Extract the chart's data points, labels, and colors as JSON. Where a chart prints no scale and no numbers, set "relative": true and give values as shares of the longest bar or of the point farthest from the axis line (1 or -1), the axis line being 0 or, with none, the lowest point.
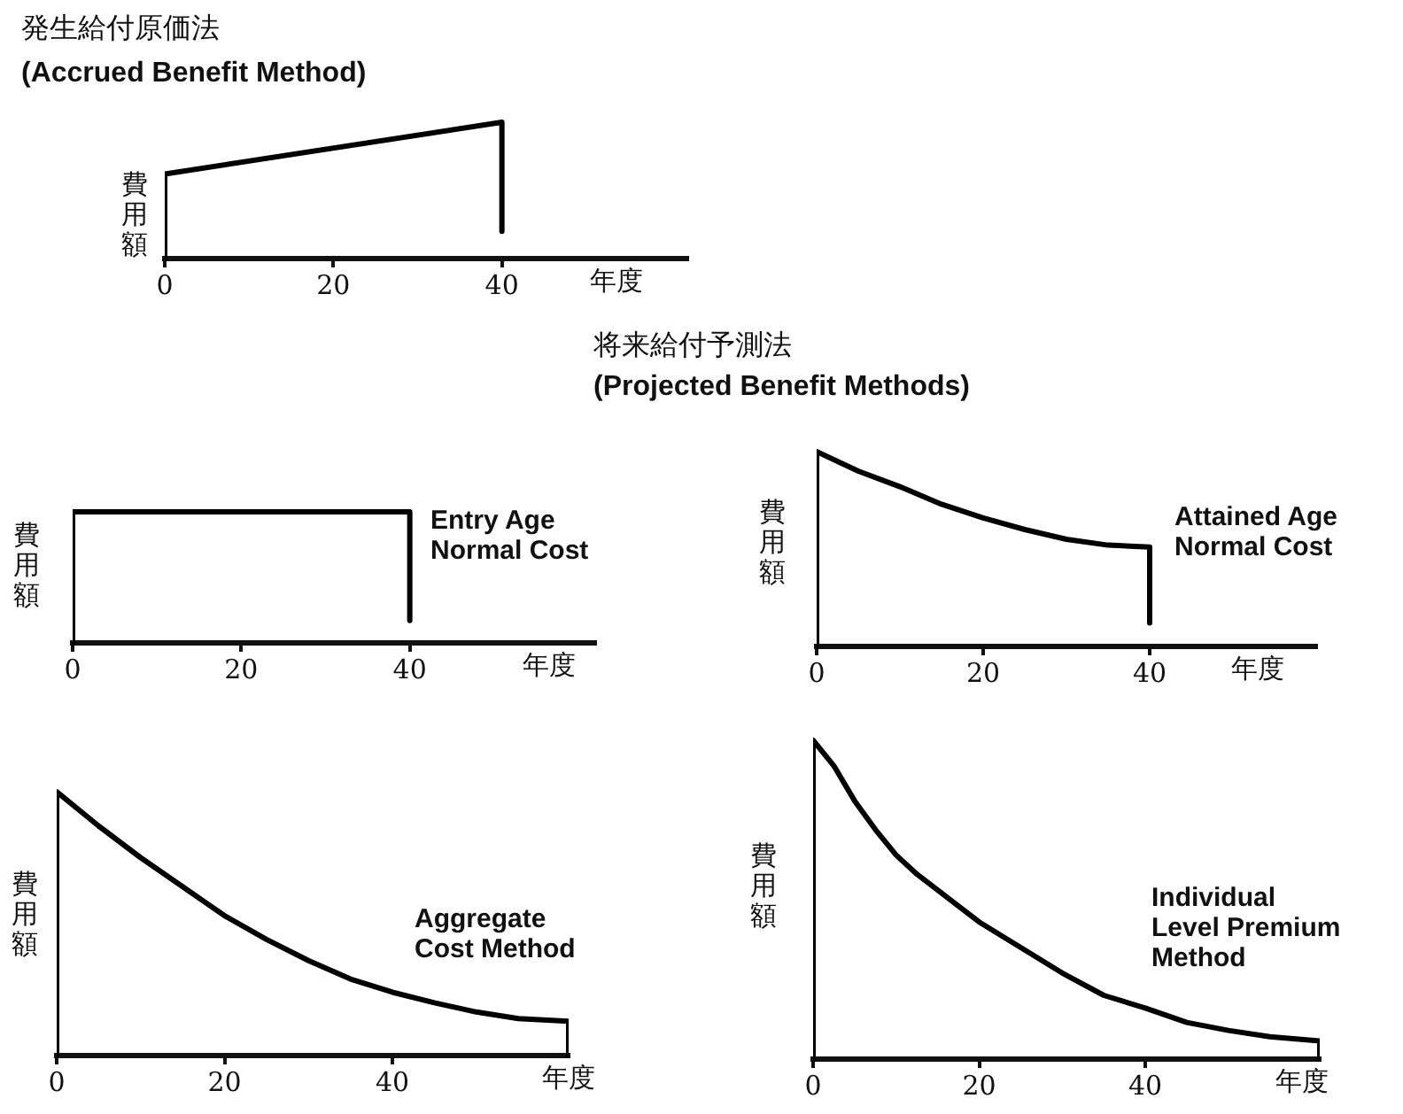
{
  "chart_data": [
    {
      "type": "line",
      "title": "発生給付原価法",
      "subtitle": "(Accrued Benefit Method)",
      "xlabel": "年度",
      "ylabel": "費用額",
      "relative": true,
      "xlim": [
        0,
        62
      ],
      "xticks": [
        0,
        20,
        40
      ],
      "series": [
        {
          "color": "#000000",
          "x": [
            0,
            0,
            40,
            40
          ],
          "values": [
            0,
            0.62,
            1,
            0.2
          ]
        }
      ]
    },
    {
      "type": "line",
      "title": "将来給付予測法",
      "subtitle": "(Projected Benefit Methods)",
      "xlabel": "年度",
      "ylabel": "費用額",
      "relative": true,
      "xlim": [
        0,
        62
      ],
      "xticks": [
        0,
        20,
        40
      ],
      "series": [
        {
          "name": "Entry Age Normal Cost",
          "color": "#000000",
          "x": [
            0,
            0,
            40,
            40
          ],
          "values": [
            0,
            1,
            1,
            0.17
          ]
        }
      ]
    },
    {
      "type": "line",
      "xlabel": "年度",
      "ylabel": "費用額",
      "relative": true,
      "xlim": [
        0,
        60
      ],
      "xticks": [
        0,
        20,
        40
      ],
      "series": [
        {
          "name": "Attained Age Normal Cost",
          "color": "#000000",
          "x": [
            0,
            0,
            5,
            10,
            15,
            20,
            25,
            30,
            35,
            40,
            40
          ],
          "values": [
            0,
            1,
            0.9,
            0.82,
            0.73,
            0.66,
            0.6,
            0.55,
            0.52,
            0.51,
            0.12
          ]
        }
      ]
    },
    {
      "type": "line",
      "xlabel": "年度",
      "ylabel": "費用額",
      "relative": true,
      "xlim": [
        0,
        61
      ],
      "xticks": [
        0,
        20,
        40
      ],
      "series": [
        {
          "name": "Aggregate Cost Method",
          "color": "#000000",
          "x": [
            0,
            0,
            5,
            10,
            15,
            20,
            25,
            30,
            35,
            40,
            45,
            50,
            55,
            61,
            61
          ],
          "values": [
            0,
            1,
            0.87,
            0.75,
            0.64,
            0.53,
            0.44,
            0.36,
            0.29,
            0.24,
            0.2,
            0.165,
            0.14,
            0.13,
            0
          ]
        }
      ]
    },
    {
      "type": "line",
      "xlabel": "年度",
      "ylabel": "費用額",
      "relative": true,
      "xlim": [
        0,
        61
      ],
      "xticks": [
        0,
        20,
        40
      ],
      "series": [
        {
          "name": "Individual Level Premium Method",
          "color": "#000000",
          "x": [
            0,
            0,
            2.5,
            5,
            7.5,
            10,
            12.5,
            15,
            20,
            25,
            30,
            35,
            40,
            45,
            50,
            55,
            61,
            61
          ],
          "values": [
            0,
            1,
            0.92,
            0.81,
            0.72,
            0.64,
            0.58,
            0.53,
            0.43,
            0.35,
            0.27,
            0.2,
            0.16,
            0.115,
            0.09,
            0.07,
            0.057,
            0
          ]
        }
      ]
    }
  ]
}
